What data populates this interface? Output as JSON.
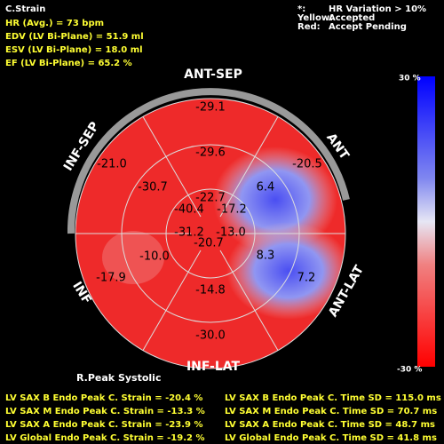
{
  "header": {
    "title": "C.Strain",
    "lines": [
      "HR (Avg.) = 73 bpm",
      "EDV (LV Bi-Plane) = 51.9 ml",
      "ESV (LV Bi-Plane) = 18.0 ml",
      "EF (LV Bi-Plane) = 65.2 %"
    ]
  },
  "legend": {
    "rows": [
      [
        "*:",
        "HR Variation > 10%"
      ],
      [
        "Yellow:",
        "Accepted"
      ],
      [
        "Red:",
        "Accept Pending"
      ]
    ]
  },
  "plot": {
    "walls": [
      "ANT-SEP",
      "ANT",
      "ANT-LAT",
      "INF-LAT",
      "INF",
      "INF-SEP"
    ],
    "outer": [
      "-29.1",
      "-20.5",
      "7.2",
      "-30.0",
      "-17.9",
      "-21.0"
    ],
    "middle": [
      "-29.6",
      "6.4",
      "8.3",
      "-14.8",
      "-10.0",
      "-30.7"
    ],
    "inner": [
      "-22.7",
      "-17.2",
      "-13.0",
      "-20.7",
      "-31.2",
      "-40.4"
    ]
  },
  "colorbar": {
    "top": "30 %",
    "bottom": "-30 %"
  },
  "footer": {
    "caption": "R.Peak Systolic",
    "left": [
      "LV SAX B Endo Peak C. Strain = -20.4 %",
      "LV SAX M Endo Peak C. Strain = -13.3 %",
      "LV SAX A Endo Peak C. Strain = -23.9 %",
      "LV Global Endo Peak C. Strain = -19.2 %"
    ],
    "right": [
      "LV SAX B Endo Peak C. Time SD = 115.0 ms",
      "LV SAX M Endo Peak C. Time SD = 70.7 ms",
      "LV SAX A Endo Peak C. Time SD = 48.7 ms",
      "LV Global Endo Peak C. Time SD = 41.8 ms"
    ]
  }
}
